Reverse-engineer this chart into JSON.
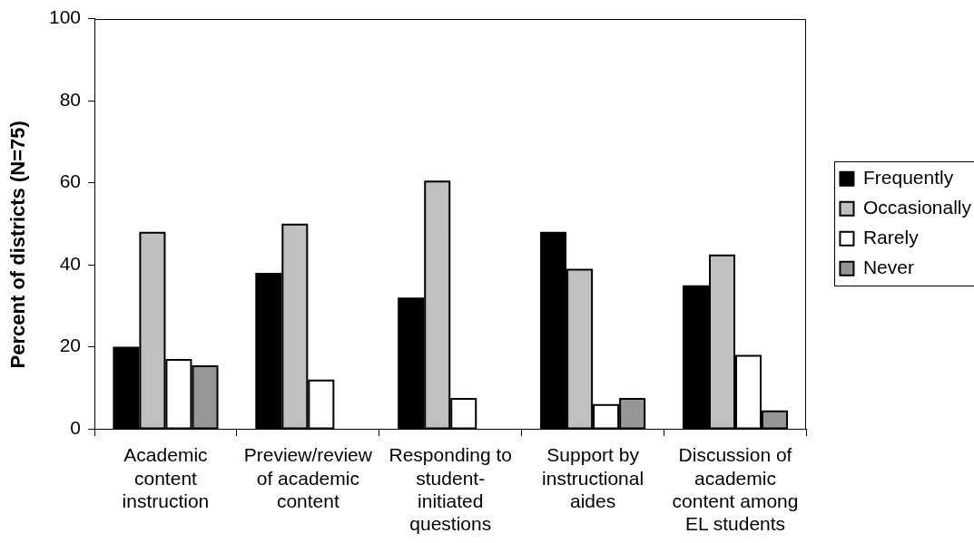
{
  "chart_data": {
    "type": "bar",
    "ylabel": "Percent of districts (N=75)",
    "categories": [
      "Academic content instruction",
      "Preview/review of academic content",
      "Responding to student-initiated questions",
      "Support by instructional aides",
      "Discussion of academic content among EL students"
    ],
    "series": [
      {
        "name": "Frequently",
        "color": "#000000",
        "values": [
          20,
          38,
          32,
          48,
          35
        ]
      },
      {
        "name": "Occasionally",
        "color": "#c0c0c0",
        "values": [
          48,
          50,
          60.5,
          39,
          42.5
        ]
      },
      {
        "name": "Rarely",
        "color": "#ffffff",
        "values": [
          17,
          12,
          7.5,
          6,
          18
        ]
      },
      {
        "name": "Never",
        "color": "#969696",
        "values": [
          15.5,
          0,
          0,
          7.5,
          4.5
        ]
      }
    ],
    "ylim": [
      0,
      100
    ],
    "yticks": [
      0,
      20,
      40,
      60,
      80,
      100
    ],
    "grid": false,
    "legend": "right"
  }
}
